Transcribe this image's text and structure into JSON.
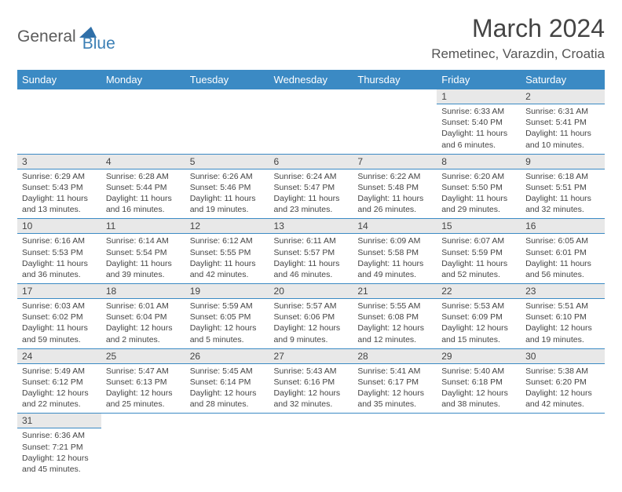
{
  "logo": {
    "part1": "General",
    "part2": "Blue",
    "triangle_color": "#2f6fa8"
  },
  "header": {
    "title": "March 2024",
    "location": "Remetinec, Varazdin, Croatia"
  },
  "colors": {
    "header_bg": "#3b8ac4",
    "header_text": "#ffffff",
    "daynum_bg": "#e8e8e8",
    "rule": "#3b8ac4"
  },
  "day_labels": [
    "Sunday",
    "Monday",
    "Tuesday",
    "Wednesday",
    "Thursday",
    "Friday",
    "Saturday"
  ],
  "weeks": [
    [
      null,
      null,
      null,
      null,
      null,
      {
        "n": "1",
        "sunrise": "Sunrise: 6:33 AM",
        "sunset": "Sunset: 5:40 PM",
        "daylight": "Daylight: 11 hours and 6 minutes."
      },
      {
        "n": "2",
        "sunrise": "Sunrise: 6:31 AM",
        "sunset": "Sunset: 5:41 PM",
        "daylight": "Daylight: 11 hours and 10 minutes."
      }
    ],
    [
      {
        "n": "3",
        "sunrise": "Sunrise: 6:29 AM",
        "sunset": "Sunset: 5:43 PM",
        "daylight": "Daylight: 11 hours and 13 minutes."
      },
      {
        "n": "4",
        "sunrise": "Sunrise: 6:28 AM",
        "sunset": "Sunset: 5:44 PM",
        "daylight": "Daylight: 11 hours and 16 minutes."
      },
      {
        "n": "5",
        "sunrise": "Sunrise: 6:26 AM",
        "sunset": "Sunset: 5:46 PM",
        "daylight": "Daylight: 11 hours and 19 minutes."
      },
      {
        "n": "6",
        "sunrise": "Sunrise: 6:24 AM",
        "sunset": "Sunset: 5:47 PM",
        "daylight": "Daylight: 11 hours and 23 minutes."
      },
      {
        "n": "7",
        "sunrise": "Sunrise: 6:22 AM",
        "sunset": "Sunset: 5:48 PM",
        "daylight": "Daylight: 11 hours and 26 minutes."
      },
      {
        "n": "8",
        "sunrise": "Sunrise: 6:20 AM",
        "sunset": "Sunset: 5:50 PM",
        "daylight": "Daylight: 11 hours and 29 minutes."
      },
      {
        "n": "9",
        "sunrise": "Sunrise: 6:18 AM",
        "sunset": "Sunset: 5:51 PM",
        "daylight": "Daylight: 11 hours and 32 minutes."
      }
    ],
    [
      {
        "n": "10",
        "sunrise": "Sunrise: 6:16 AM",
        "sunset": "Sunset: 5:53 PM",
        "daylight": "Daylight: 11 hours and 36 minutes."
      },
      {
        "n": "11",
        "sunrise": "Sunrise: 6:14 AM",
        "sunset": "Sunset: 5:54 PM",
        "daylight": "Daylight: 11 hours and 39 minutes."
      },
      {
        "n": "12",
        "sunrise": "Sunrise: 6:12 AM",
        "sunset": "Sunset: 5:55 PM",
        "daylight": "Daylight: 11 hours and 42 minutes."
      },
      {
        "n": "13",
        "sunrise": "Sunrise: 6:11 AM",
        "sunset": "Sunset: 5:57 PM",
        "daylight": "Daylight: 11 hours and 46 minutes."
      },
      {
        "n": "14",
        "sunrise": "Sunrise: 6:09 AM",
        "sunset": "Sunset: 5:58 PM",
        "daylight": "Daylight: 11 hours and 49 minutes."
      },
      {
        "n": "15",
        "sunrise": "Sunrise: 6:07 AM",
        "sunset": "Sunset: 5:59 PM",
        "daylight": "Daylight: 11 hours and 52 minutes."
      },
      {
        "n": "16",
        "sunrise": "Sunrise: 6:05 AM",
        "sunset": "Sunset: 6:01 PM",
        "daylight": "Daylight: 11 hours and 56 minutes."
      }
    ],
    [
      {
        "n": "17",
        "sunrise": "Sunrise: 6:03 AM",
        "sunset": "Sunset: 6:02 PM",
        "daylight": "Daylight: 11 hours and 59 minutes."
      },
      {
        "n": "18",
        "sunrise": "Sunrise: 6:01 AM",
        "sunset": "Sunset: 6:04 PM",
        "daylight": "Daylight: 12 hours and 2 minutes."
      },
      {
        "n": "19",
        "sunrise": "Sunrise: 5:59 AM",
        "sunset": "Sunset: 6:05 PM",
        "daylight": "Daylight: 12 hours and 5 minutes."
      },
      {
        "n": "20",
        "sunrise": "Sunrise: 5:57 AM",
        "sunset": "Sunset: 6:06 PM",
        "daylight": "Daylight: 12 hours and 9 minutes."
      },
      {
        "n": "21",
        "sunrise": "Sunrise: 5:55 AM",
        "sunset": "Sunset: 6:08 PM",
        "daylight": "Daylight: 12 hours and 12 minutes."
      },
      {
        "n": "22",
        "sunrise": "Sunrise: 5:53 AM",
        "sunset": "Sunset: 6:09 PM",
        "daylight": "Daylight: 12 hours and 15 minutes."
      },
      {
        "n": "23",
        "sunrise": "Sunrise: 5:51 AM",
        "sunset": "Sunset: 6:10 PM",
        "daylight": "Daylight: 12 hours and 19 minutes."
      }
    ],
    [
      {
        "n": "24",
        "sunrise": "Sunrise: 5:49 AM",
        "sunset": "Sunset: 6:12 PM",
        "daylight": "Daylight: 12 hours and 22 minutes."
      },
      {
        "n": "25",
        "sunrise": "Sunrise: 5:47 AM",
        "sunset": "Sunset: 6:13 PM",
        "daylight": "Daylight: 12 hours and 25 minutes."
      },
      {
        "n": "26",
        "sunrise": "Sunrise: 5:45 AM",
        "sunset": "Sunset: 6:14 PM",
        "daylight": "Daylight: 12 hours and 28 minutes."
      },
      {
        "n": "27",
        "sunrise": "Sunrise: 5:43 AM",
        "sunset": "Sunset: 6:16 PM",
        "daylight": "Daylight: 12 hours and 32 minutes."
      },
      {
        "n": "28",
        "sunrise": "Sunrise: 5:41 AM",
        "sunset": "Sunset: 6:17 PM",
        "daylight": "Daylight: 12 hours and 35 minutes."
      },
      {
        "n": "29",
        "sunrise": "Sunrise: 5:40 AM",
        "sunset": "Sunset: 6:18 PM",
        "daylight": "Daylight: 12 hours and 38 minutes."
      },
      {
        "n": "30",
        "sunrise": "Sunrise: 5:38 AM",
        "sunset": "Sunset: 6:20 PM",
        "daylight": "Daylight: 12 hours and 42 minutes."
      }
    ],
    [
      {
        "n": "31",
        "sunrise": "Sunrise: 6:36 AM",
        "sunset": "Sunset: 7:21 PM",
        "daylight": "Daylight: 12 hours and 45 minutes."
      },
      null,
      null,
      null,
      null,
      null,
      null
    ]
  ]
}
